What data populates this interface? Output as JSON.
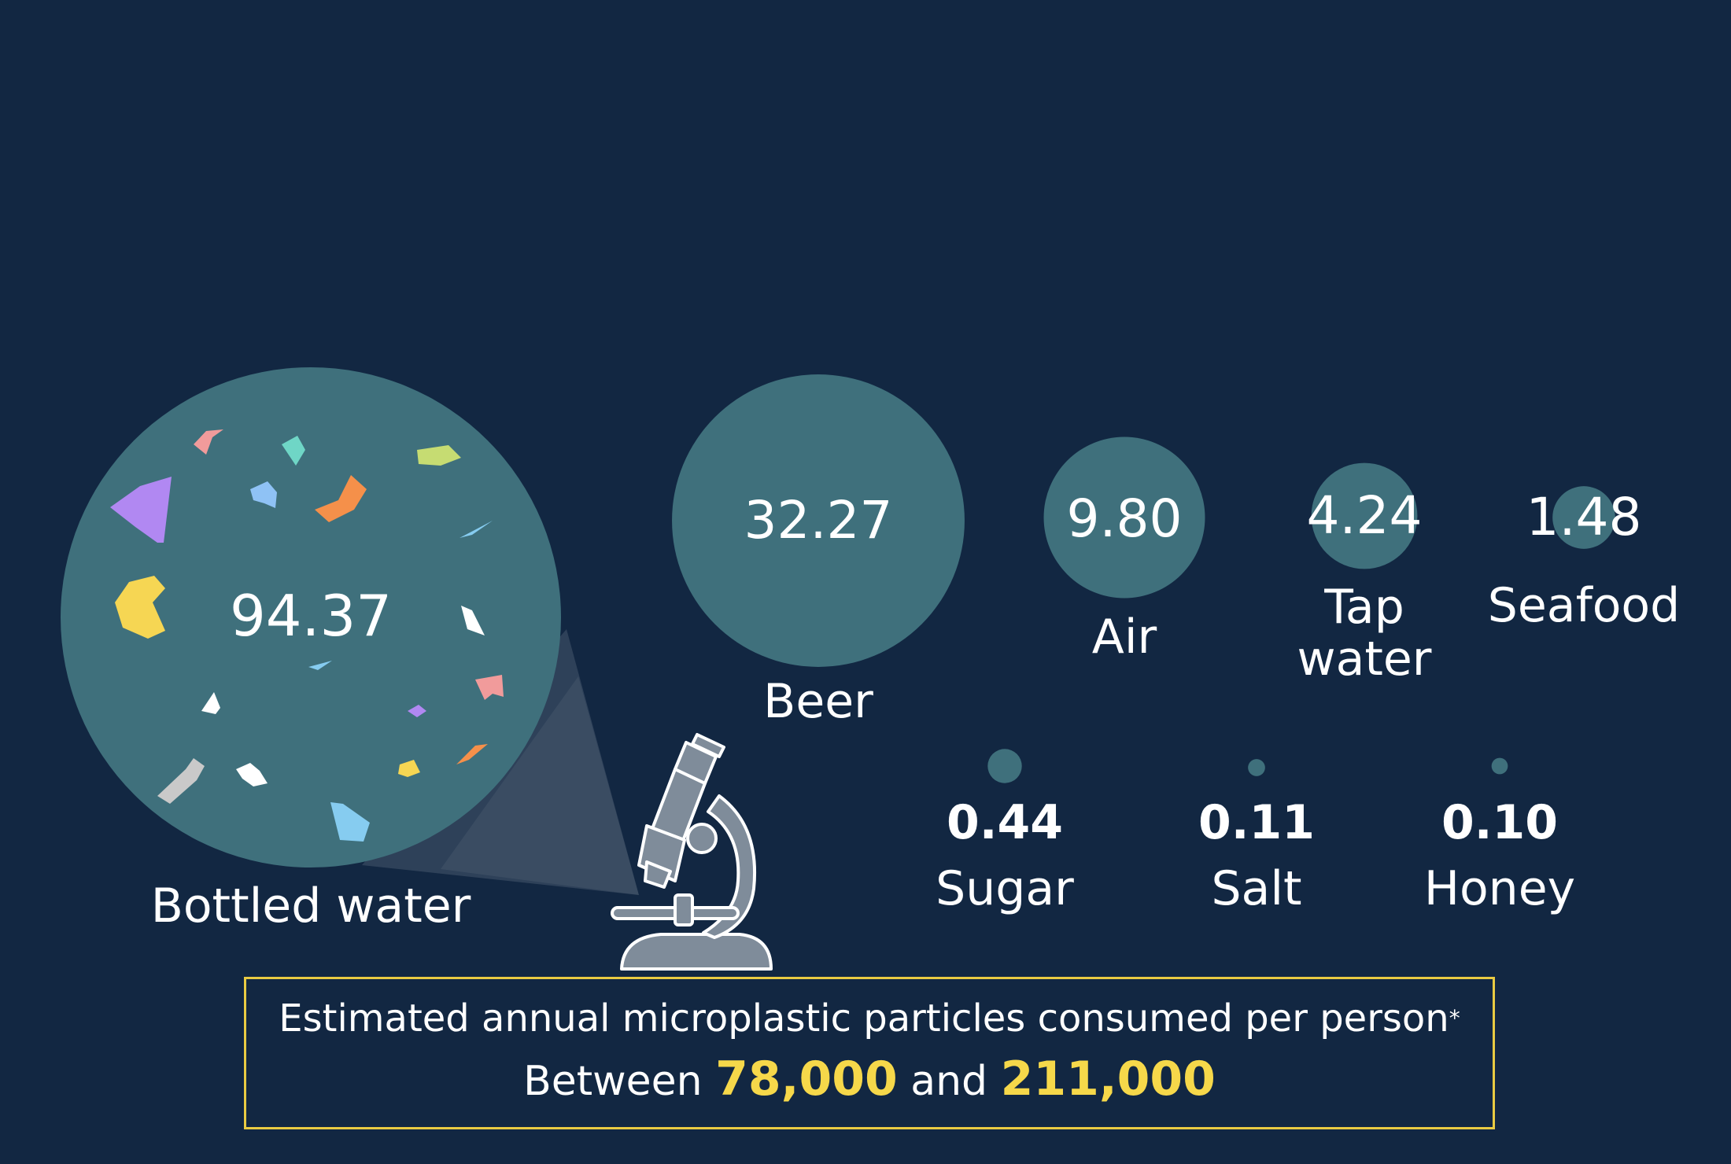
{
  "chart_data": {
    "type": "bubble",
    "title": "",
    "series": [
      {
        "values": [
          {
            "category": "Bottled water",
            "value": 94.37,
            "value_label": "94.37"
          },
          {
            "category": "Beer",
            "value": 32.27,
            "value_label": "32.27"
          },
          {
            "category": "Air",
            "value": 9.8,
            "value_label": "9.80"
          },
          {
            "category": "Tap water",
            "value": 4.24,
            "value_label": "4.24"
          },
          {
            "category": "Seafood",
            "value": 1.48,
            "value_label": "1.48"
          },
          {
            "category": "Sugar",
            "value": 0.44,
            "value_label": "0.44"
          },
          {
            "category": "Salt",
            "value": 0.11,
            "value_label": "0.11"
          },
          {
            "category": "Honey",
            "value": 0.1,
            "value_label": "0.10"
          }
        ]
      }
    ],
    "colors": {
      "background": "#122742",
      "bubble": "#3f707c",
      "highlight": "#f6d84a",
      "box_border": "#e9cb42"
    }
  },
  "summary": {
    "title": "Estimated annual microplastic particles consumed per person",
    "footnote_mark": "*",
    "prefix": "Between",
    "low": "78,000",
    "conjunction": "and",
    "high": "211,000"
  },
  "icons": [
    "microscope-icon"
  ]
}
